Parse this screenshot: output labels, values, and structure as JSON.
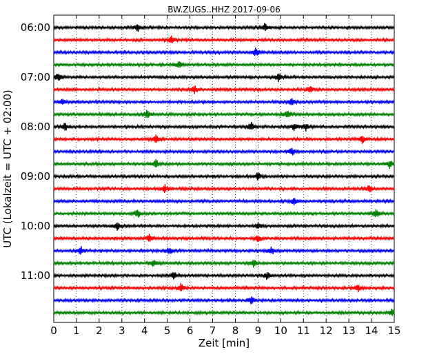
{
  "chart_data": {
    "type": "line",
    "title": "BW.ZUGS..HHZ 2017-09-06",
    "xlabel": "Zeit  [min]",
    "ylabel": "UTC (Lokalzeit = UTC + 02:00)",
    "xlim": [
      0,
      15
    ],
    "x_ticks": [
      "0",
      "1",
      "2",
      "3",
      "4",
      "5",
      "6",
      "7",
      "8",
      "9",
      "10",
      "11",
      "12",
      "13",
      "14",
      "15"
    ],
    "y_tick_labels": [
      "06:00",
      "07:00",
      "08:00",
      "09:00",
      "10:00",
      "11:00"
    ],
    "grid": "vertical dotted",
    "color_cycle": [
      "#000000",
      "#ff0000",
      "#0000ff",
      "#008000"
    ],
    "row_interval_minutes": 15,
    "series": [
      {
        "start": "06:00",
        "events": [
          3.7,
          9.3
        ]
      },
      {
        "start": "06:15",
        "events": [
          5.2
        ]
      },
      {
        "start": "06:30",
        "events": [
          8.9
        ]
      },
      {
        "start": "06:45",
        "events": [
          5.5
        ]
      },
      {
        "start": "07:00",
        "events": [
          0.2,
          9.9
        ]
      },
      {
        "start": "07:15",
        "events": [
          6.2,
          11.3
        ]
      },
      {
        "start": "07:30",
        "events": [
          0.4,
          10.5
        ]
      },
      {
        "start": "07:45",
        "events": [
          4.1,
          10.3
        ]
      },
      {
        "start": "08:00",
        "events": [
          0.5,
          8.7,
          10.6,
          11.1
        ]
      },
      {
        "start": "08:15",
        "events": [
          4.5,
          13.6
        ]
      },
      {
        "start": "08:30",
        "events": [
          10.5
        ]
      },
      {
        "start": "08:45",
        "events": [
          4.5,
          14.8
        ]
      },
      {
        "start": "09:00",
        "events": [
          9.0
        ]
      },
      {
        "start": "09:15",
        "events": [
          4.9,
          13.9
        ]
      },
      {
        "start": "09:30",
        "events": [
          10.6
        ]
      },
      {
        "start": "09:45",
        "events": [
          3.7,
          14.2
        ]
      },
      {
        "start": "10:00",
        "events": [
          2.8,
          9.0
        ]
      },
      {
        "start": "10:15",
        "events": [
          4.2,
          9.0
        ]
      },
      {
        "start": "10:30",
        "events": [
          1.2,
          5.1,
          9.6
        ]
      },
      {
        "start": "10:45",
        "events": [
          4.4,
          8.8
        ]
      },
      {
        "start": "11:00",
        "events": [
          5.3,
          9.4
        ]
      },
      {
        "start": "11:15",
        "events": [
          5.6,
          13.4
        ]
      },
      {
        "start": "11:30",
        "events": [
          8.7
        ]
      },
      {
        "start": "11:45",
        "events": [
          14.9
        ]
      }
    ]
  }
}
